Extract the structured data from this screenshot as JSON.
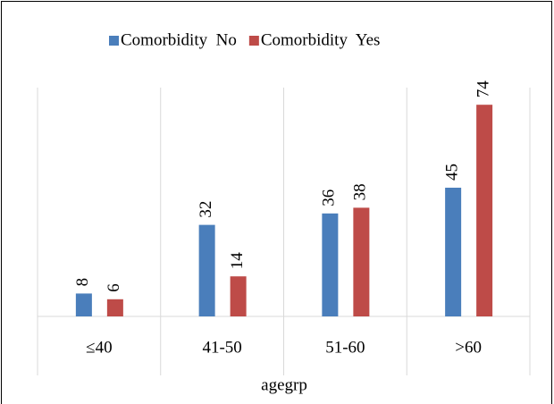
{
  "chart_data": {
    "type": "bar",
    "categories": [
      "≤40",
      "41-50",
      "51-60",
      ">60"
    ],
    "series": [
      {
        "name": "Comorbidity  No",
        "color": "#4a7ebb",
        "values": [
          8,
          32,
          36,
          45
        ]
      },
      {
        "name": "Comorbidity  Yes",
        "color": "#be4b48",
        "values": [
          6,
          14,
          38,
          74
        ]
      }
    ],
    "xlabel": "agegrp",
    "ylim": [
      0,
      80
    ],
    "legend": "top"
  }
}
